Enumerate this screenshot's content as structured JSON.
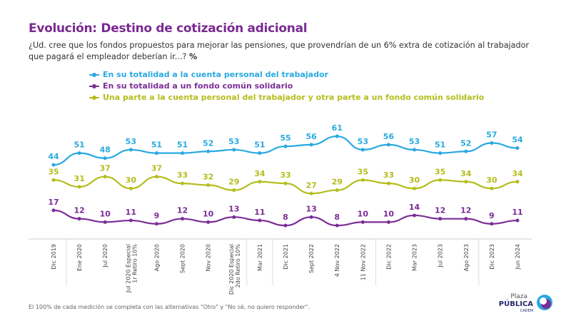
{
  "header": {
    "title": "Evolución: Destino de cotización adicional",
    "question": "¿Ud. cree que los fondos propuestos para mejorar las pensiones, que provendrían de un 6% extra de cotización al trabajador que pagará el empleador deberían ir...?",
    "unit": "%"
  },
  "chart_data": {
    "type": "line",
    "categories": [
      "Dic 2019",
      "Ene 2020",
      "Jul 2020",
      "Jul 2020 Especial 1r Retiro 10%",
      "Ago 2020",
      "Sept 2020",
      "Nov 2020",
      "Dic 2020 Especial 2do Retiro 10%",
      "Mar 2021",
      "Dic 2021",
      "Sept 2022",
      "4 Nov 2022",
      "11 Nov 2022",
      "Dic 2022",
      "Mar 2023",
      "Jul 2023",
      "Ago 2023",
      "Dic 2023",
      "Jun 2024"
    ],
    "series": [
      {
        "name": "En su totalidad a la cuenta personal del trabajador",
        "color": "#29a9e0",
        "values": [
          44,
          51,
          48,
          53,
          51,
          51,
          52,
          53,
          51,
          55,
          56,
          61,
          53,
          56,
          53,
          51,
          52,
          57,
          54
        ]
      },
      {
        "name": "En su totalidad a un fondo común solidario",
        "color": "#7b2d96",
        "values": [
          17,
          12,
          10,
          11,
          9,
          12,
          10,
          13,
          11,
          8,
          13,
          8,
          10,
          10,
          14,
          12,
          12,
          9,
          11
        ]
      },
      {
        "name": "Una parte a la cuenta personal del trabajador y otra parte a un fondo común solidario",
        "color": "#b5bd1c",
        "values": [
          35,
          31,
          37,
          30,
          37,
          33,
          32,
          29,
          34,
          33,
          27,
          29,
          35,
          33,
          30,
          35,
          34,
          30,
          34
        ]
      }
    ],
    "ylim": [
      0,
      65
    ],
    "grid": false,
    "legend": "top-left",
    "data_labels": true
  },
  "footnote": "El 100% de cada medición se completa con las alternativas \"Otro\" y \"No sé, no quiero responder\".",
  "logo": {
    "line1": "Plaza",
    "line2": "PÚBLICA",
    "line3": "CADEM"
  }
}
